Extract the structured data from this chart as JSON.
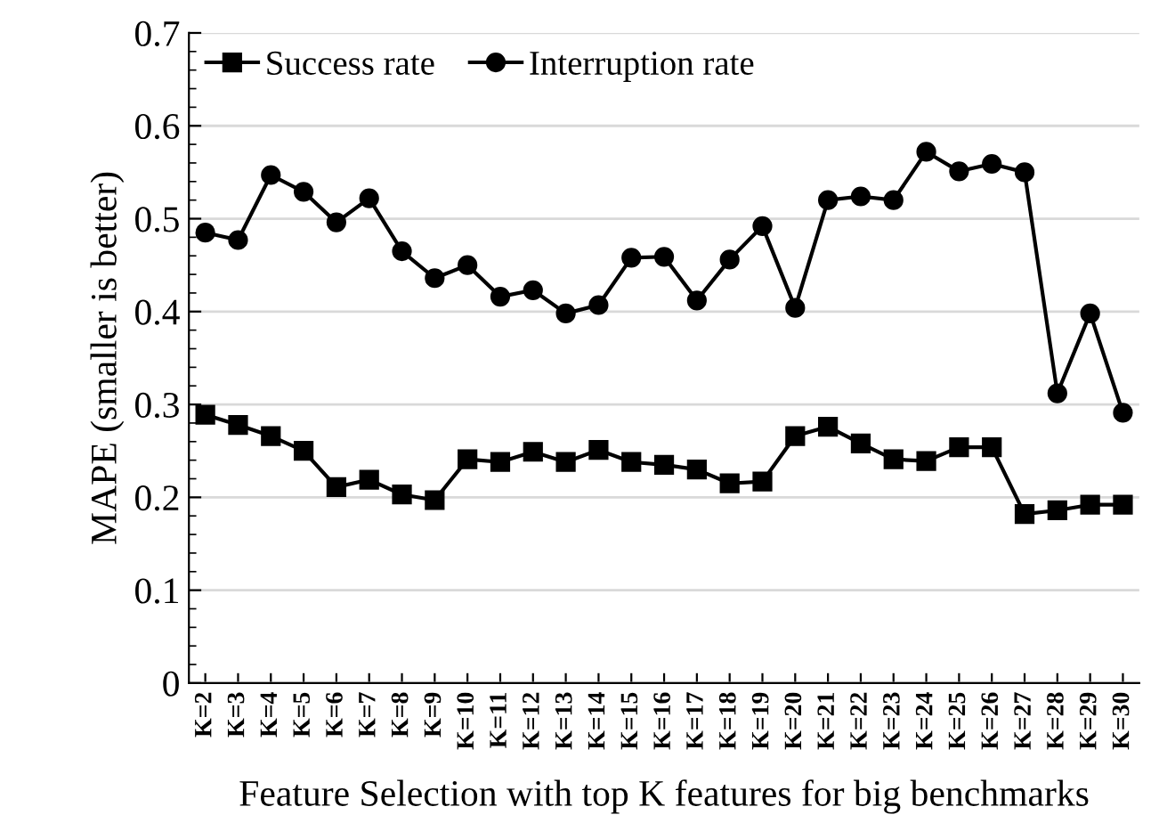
{
  "chart_data": {
    "type": "line",
    "xlabel": "Feature Selection with top K features for big benchmarks",
    "ylabel": "MAPE (smaller is better)",
    "categories": [
      "K=2",
      "K=3",
      "K=4",
      "K=5",
      "K=6",
      "K=7",
      "K=8",
      "K=9",
      "K=10",
      "K=11",
      "K=12",
      "K=13",
      "K=14",
      "K=15",
      "K=16",
      "K=17",
      "K=18",
      "K=19",
      "K=20",
      "K=21",
      "K=22",
      "K=23",
      "K=24",
      "K=25",
      "K=26",
      "K=27",
      "K=28",
      "K=29",
      "K=30"
    ],
    "series": [
      {
        "name": "Success rate",
        "color": "#000000",
        "marker": "square",
        "values": [
          0.289,
          0.278,
          0.266,
          0.25,
          0.211,
          0.219,
          0.203,
          0.197,
          0.241,
          0.238,
          0.249,
          0.238,
          0.251,
          0.238,
          0.235,
          0.23,
          0.215,
          0.217,
          0.266,
          0.276,
          0.258,
          0.241,
          0.239,
          0.254,
          0.254,
          0.182,
          0.186,
          0.192,
          0.192
        ]
      },
      {
        "name": "Interruption rate",
        "color": "#000000",
        "marker": "circle",
        "values": [
          0.485,
          0.477,
          0.547,
          0.529,
          0.496,
          0.522,
          0.465,
          0.436,
          0.45,
          0.416,
          0.423,
          0.398,
          0.407,
          0.458,
          0.459,
          0.412,
          0.456,
          0.492,
          0.404,
          0.52,
          0.524,
          0.52,
          0.572,
          0.551,
          0.559,
          0.55,
          0.312,
          0.398,
          0.291
        ]
      }
    ],
    "ylim": [
      0,
      0.7
    ],
    "yticks": [
      {
        "value": 0,
        "label": "0"
      },
      0.1,
      0.2,
      0.3,
      0.4,
      0.5,
      0.6,
      0.7
    ],
    "grid": "y",
    "legend": "top left",
    "line_style": "solid"
  }
}
